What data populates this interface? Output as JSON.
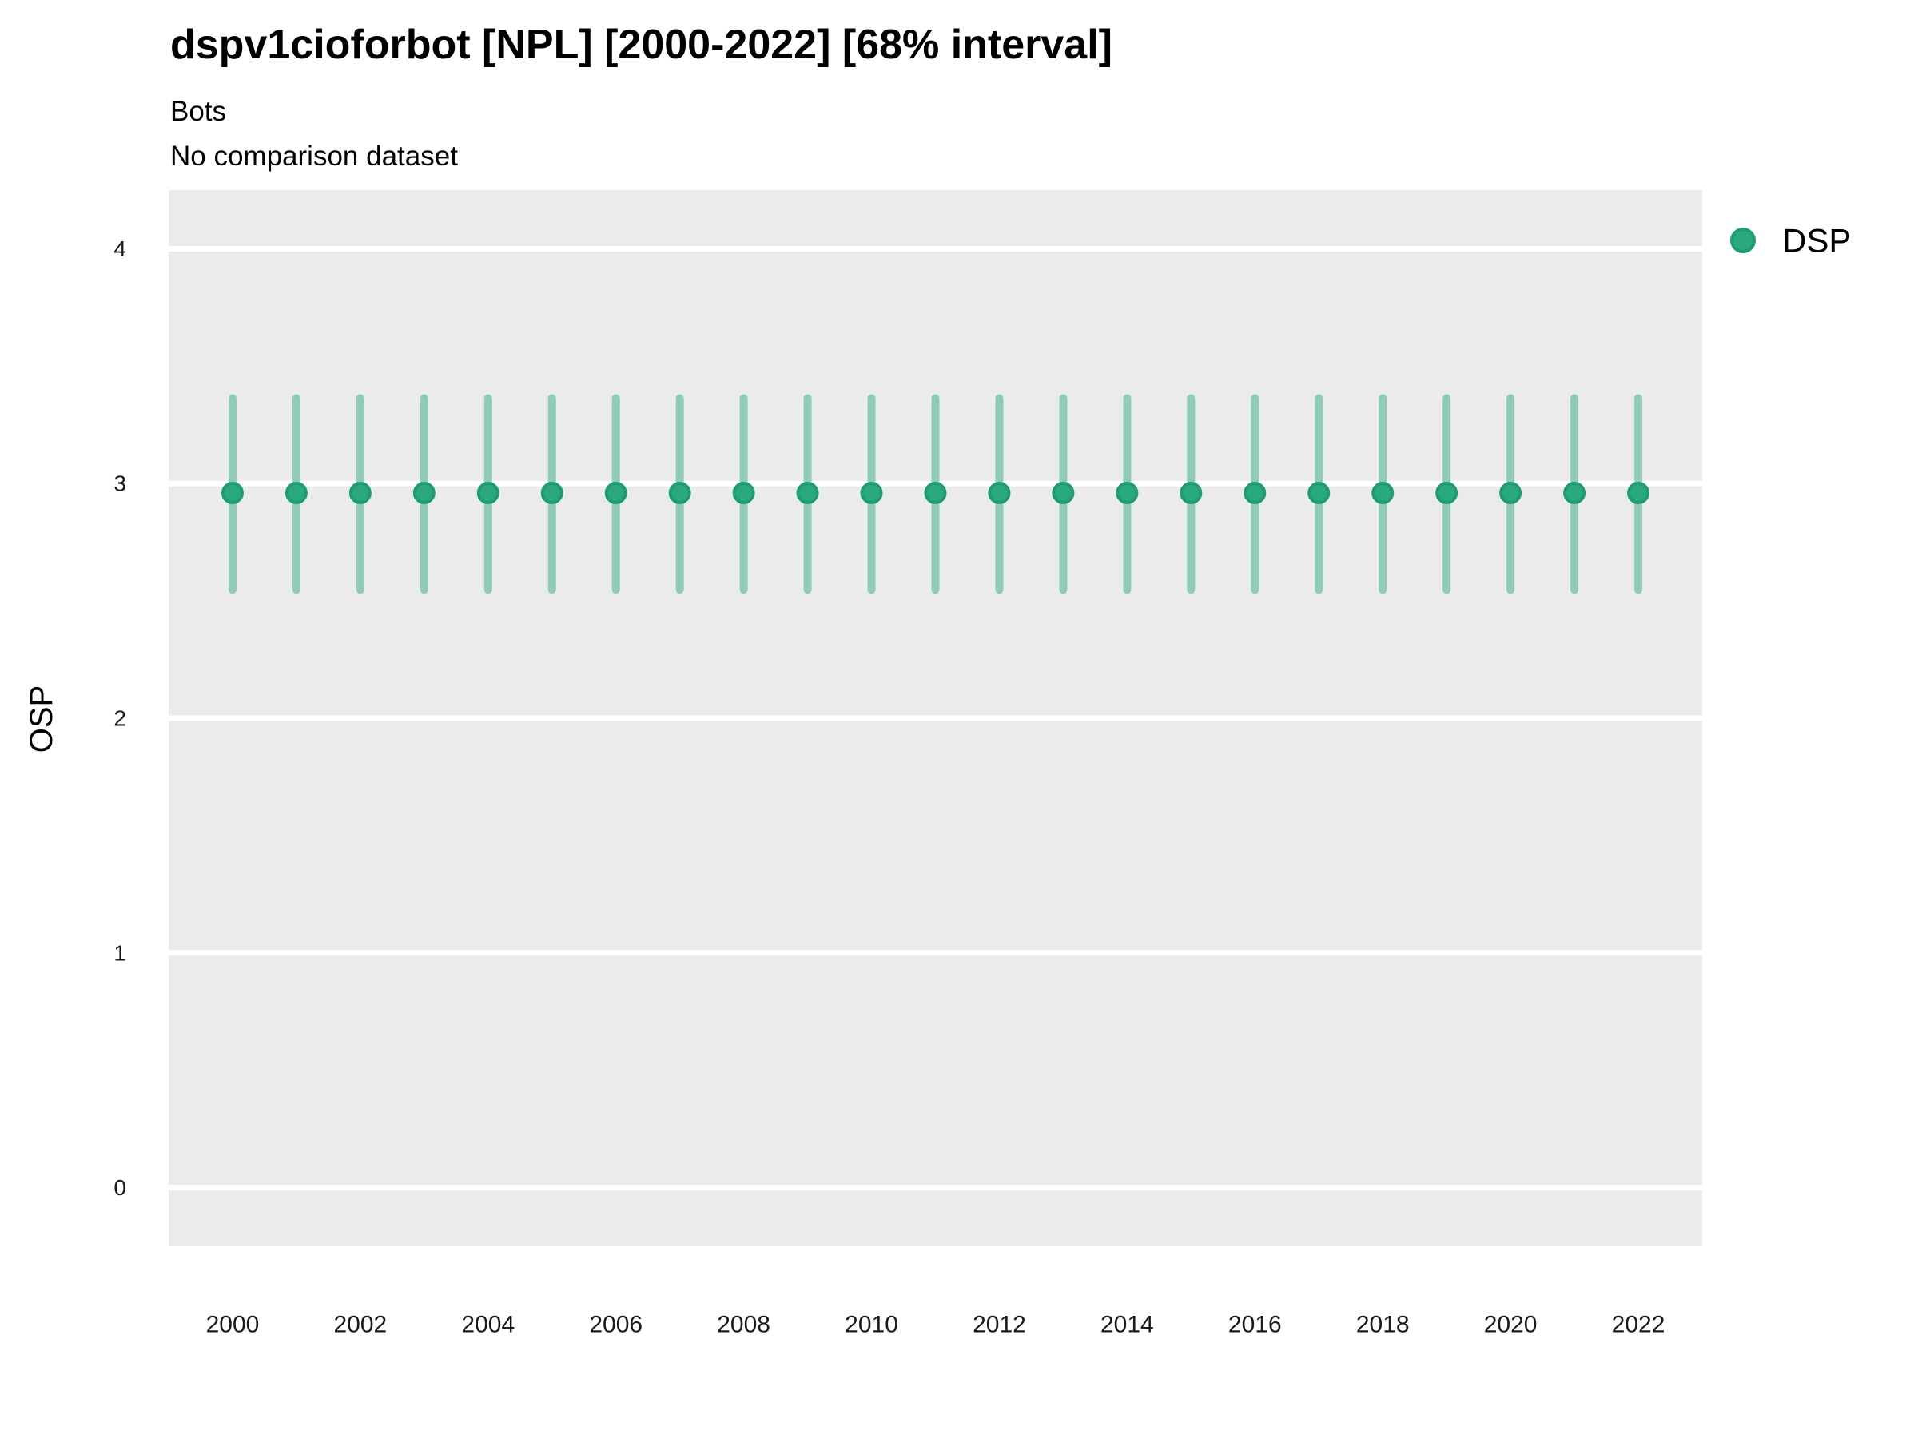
{
  "header": {
    "title": "dspv1cioforbot [NPL] [2000-2022] [68% interval]",
    "subtitle1": "Bots",
    "subtitle2": "No comparison dataset"
  },
  "legend": {
    "position": "right-top",
    "items": [
      {
        "label": "DSP",
        "color": "#2aa87e"
      }
    ]
  },
  "colors": {
    "page_bg": "#ffffff",
    "panel_bg": "#ebebeb",
    "grid": "#ffffff",
    "point_fill": "#2aa87e",
    "point_stroke": "#1e9d72",
    "interval_line": "#8fccb4",
    "text": "#000000",
    "tick_text": "#1a1a1a"
  },
  "chart_data": {
    "type": "scatter",
    "variant": "point-with-interval",
    "title": "dspv1cioforbot [NPL] [2000-2022] [68% interval]",
    "subtitle": [
      "Bots",
      "No comparison dataset"
    ],
    "xlabel": "",
    "ylabel": "OSP",
    "interval": "68%",
    "grid": "horizontal-major-only",
    "legend_position": "right",
    "x": [
      2000,
      2001,
      2002,
      2003,
      2004,
      2005,
      2006,
      2007,
      2008,
      2009,
      2010,
      2011,
      2012,
      2013,
      2014,
      2015,
      2016,
      2017,
      2018,
      2019,
      2020,
      2021,
      2022
    ],
    "series": [
      {
        "name": "DSP",
        "mid": [
          2.96,
          2.96,
          2.96,
          2.96,
          2.96,
          2.96,
          2.96,
          2.96,
          2.96,
          2.96,
          2.96,
          2.96,
          2.96,
          2.96,
          2.96,
          2.96,
          2.96,
          2.96,
          2.96,
          2.96,
          2.96,
          2.96,
          2.96
        ],
        "lo": [
          2.53,
          2.53,
          2.53,
          2.53,
          2.53,
          2.53,
          2.53,
          2.53,
          2.53,
          2.53,
          2.53,
          2.53,
          2.53,
          2.53,
          2.53,
          2.53,
          2.53,
          2.53,
          2.53,
          2.53,
          2.53,
          2.53,
          2.53
        ],
        "hi": [
          3.38,
          3.38,
          3.38,
          3.38,
          3.38,
          3.38,
          3.38,
          3.38,
          3.38,
          3.38,
          3.38,
          3.38,
          3.38,
          3.38,
          3.38,
          3.38,
          3.38,
          3.38,
          3.38,
          3.38,
          3.38,
          3.38,
          3.38
        ]
      }
    ],
    "xticks": [
      2000,
      2002,
      2004,
      2006,
      2008,
      2010,
      2012,
      2014,
      2016,
      2018,
      2020,
      2022
    ],
    "yticks": [
      0,
      1,
      2,
      3,
      4
    ],
    "ylim": [
      -0.25,
      4.25
    ],
    "xlim": [
      1999,
      2023
    ]
  }
}
